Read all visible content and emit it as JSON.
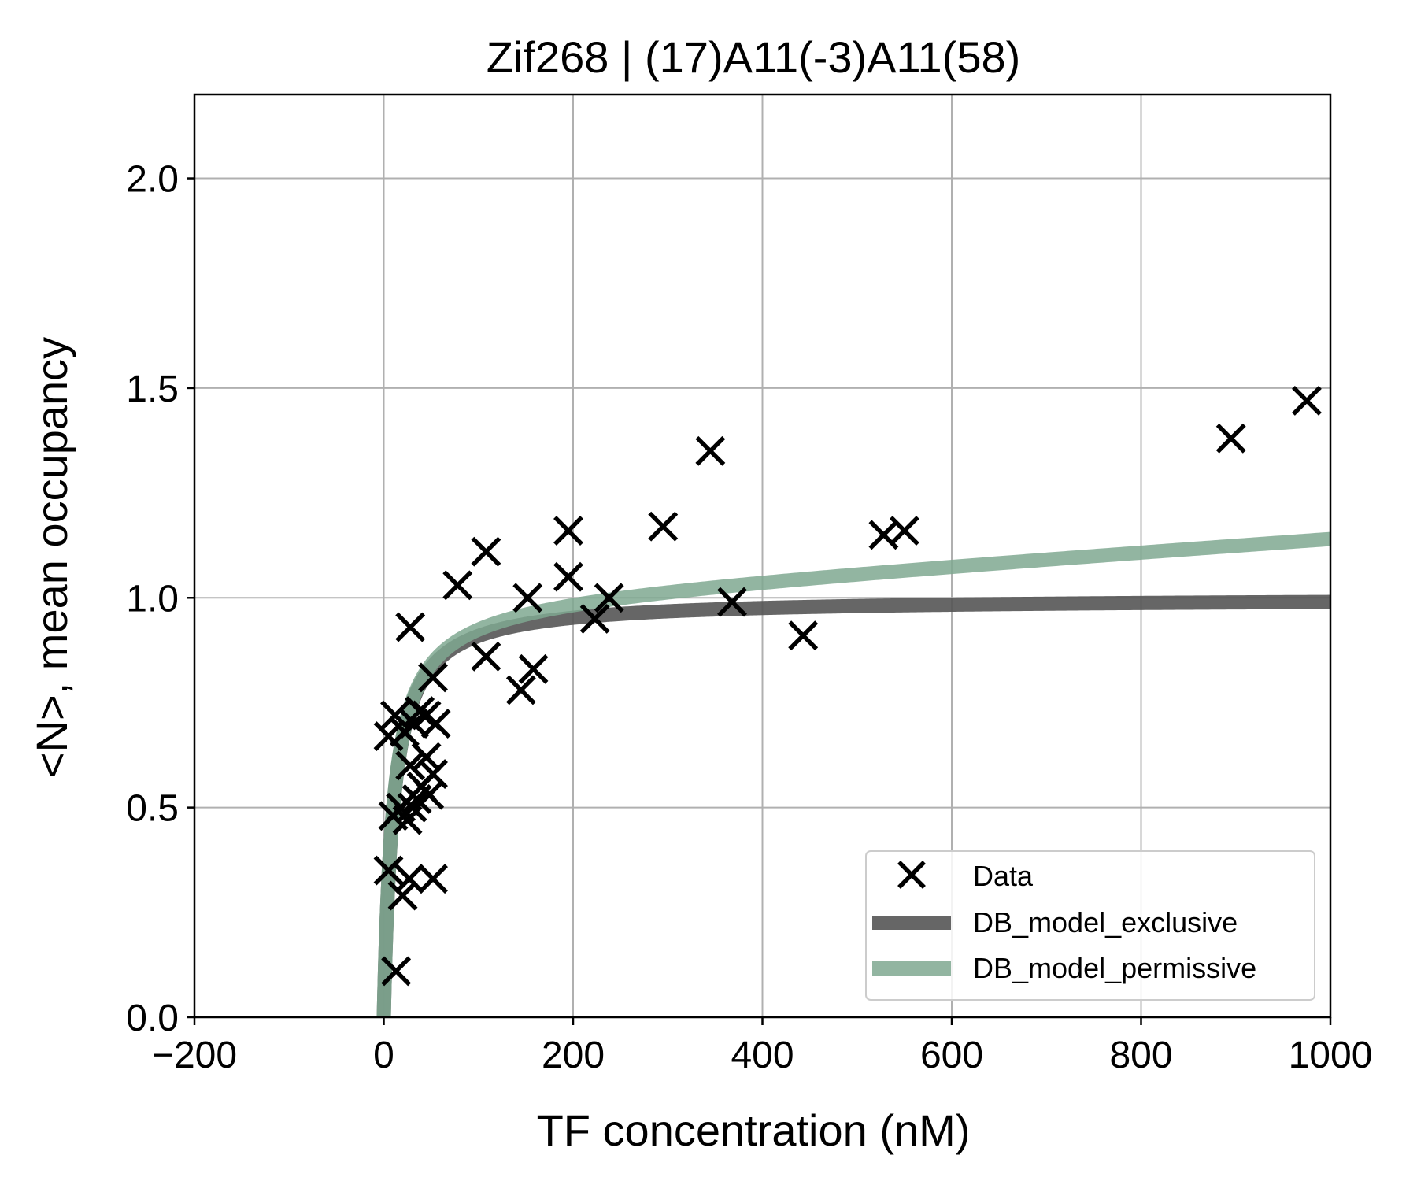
{
  "chart_data": {
    "type": "scatter",
    "title": "Zif268 | (17)A11(-3)A11(58)",
    "xlabel": "TF concentration (nM)",
    "ylabel": "<N>, mean occupancy",
    "xlim": [
      -200,
      1000
    ],
    "ylim": [
      0,
      2.2
    ],
    "x_ticks": [
      -200,
      0,
      200,
      400,
      600,
      800,
      1000
    ],
    "x_tick_labels": [
      "−200",
      "0",
      "200",
      "400",
      "600",
      "800",
      "1000"
    ],
    "y_ticks": [
      0,
      0.5,
      1.0,
      1.5,
      2.0
    ],
    "y_tick_labels": [
      "0.0",
      "0.5",
      "1.0",
      "1.5",
      "2.0"
    ],
    "grid": true,
    "legend_position": "lower-right",
    "series": [
      {
        "name": "Data",
        "kind": "scatter",
        "marker": "x",
        "color": "#000000",
        "points": [
          [
            13,
            0.11
          ],
          [
            20,
            0.29
          ],
          [
            27,
            0.33
          ],
          [
            52,
            0.33
          ],
          [
            5,
            0.35
          ],
          [
            10,
            0.48
          ],
          [
            18,
            0.5
          ],
          [
            25,
            0.47
          ],
          [
            30,
            0.5
          ],
          [
            35,
            0.52
          ],
          [
            40,
            0.55
          ],
          [
            48,
            0.53
          ],
          [
            28,
            0.6
          ],
          [
            45,
            0.62
          ],
          [
            52,
            0.58
          ],
          [
            5,
            0.67
          ],
          [
            12,
            0.72
          ],
          [
            22,
            0.68
          ],
          [
            32,
            0.7
          ],
          [
            38,
            0.73
          ],
          [
            45,
            0.72
          ],
          [
            55,
            0.7
          ],
          [
            52,
            0.81
          ],
          [
            28,
            0.93
          ],
          [
            78,
            1.03
          ],
          [
            108,
            1.11
          ],
          [
            108,
            0.86
          ],
          [
            145,
            0.78
          ],
          [
            158,
            0.83
          ],
          [
            152,
            1.0
          ],
          [
            195,
            1.05
          ],
          [
            195,
            1.16
          ],
          [
            223,
            0.95
          ],
          [
            238,
            1.0
          ],
          [
            295,
            1.17
          ],
          [
            345,
            1.35
          ],
          [
            368,
            0.99
          ],
          [
            443,
            0.91
          ],
          [
            528,
            1.15
          ],
          [
            550,
            1.16
          ],
          [
            895,
            1.38
          ],
          [
            975,
            1.47
          ]
        ]
      },
      {
        "name": "DB_model_exclusive",
        "kind": "line",
        "color": "#555555",
        "opacity": 0.9,
        "model": {
          "Kd": 10,
          "amplitude": 1.0,
          "slope": 0
        }
      },
      {
        "name": "DB_model_permissive",
        "kind": "line",
        "color": "#7fa890",
        "opacity": 0.85,
        "model": {
          "Kd": 10,
          "amplitude": 1.0,
          "slope": 0.00015
        }
      }
    ]
  }
}
